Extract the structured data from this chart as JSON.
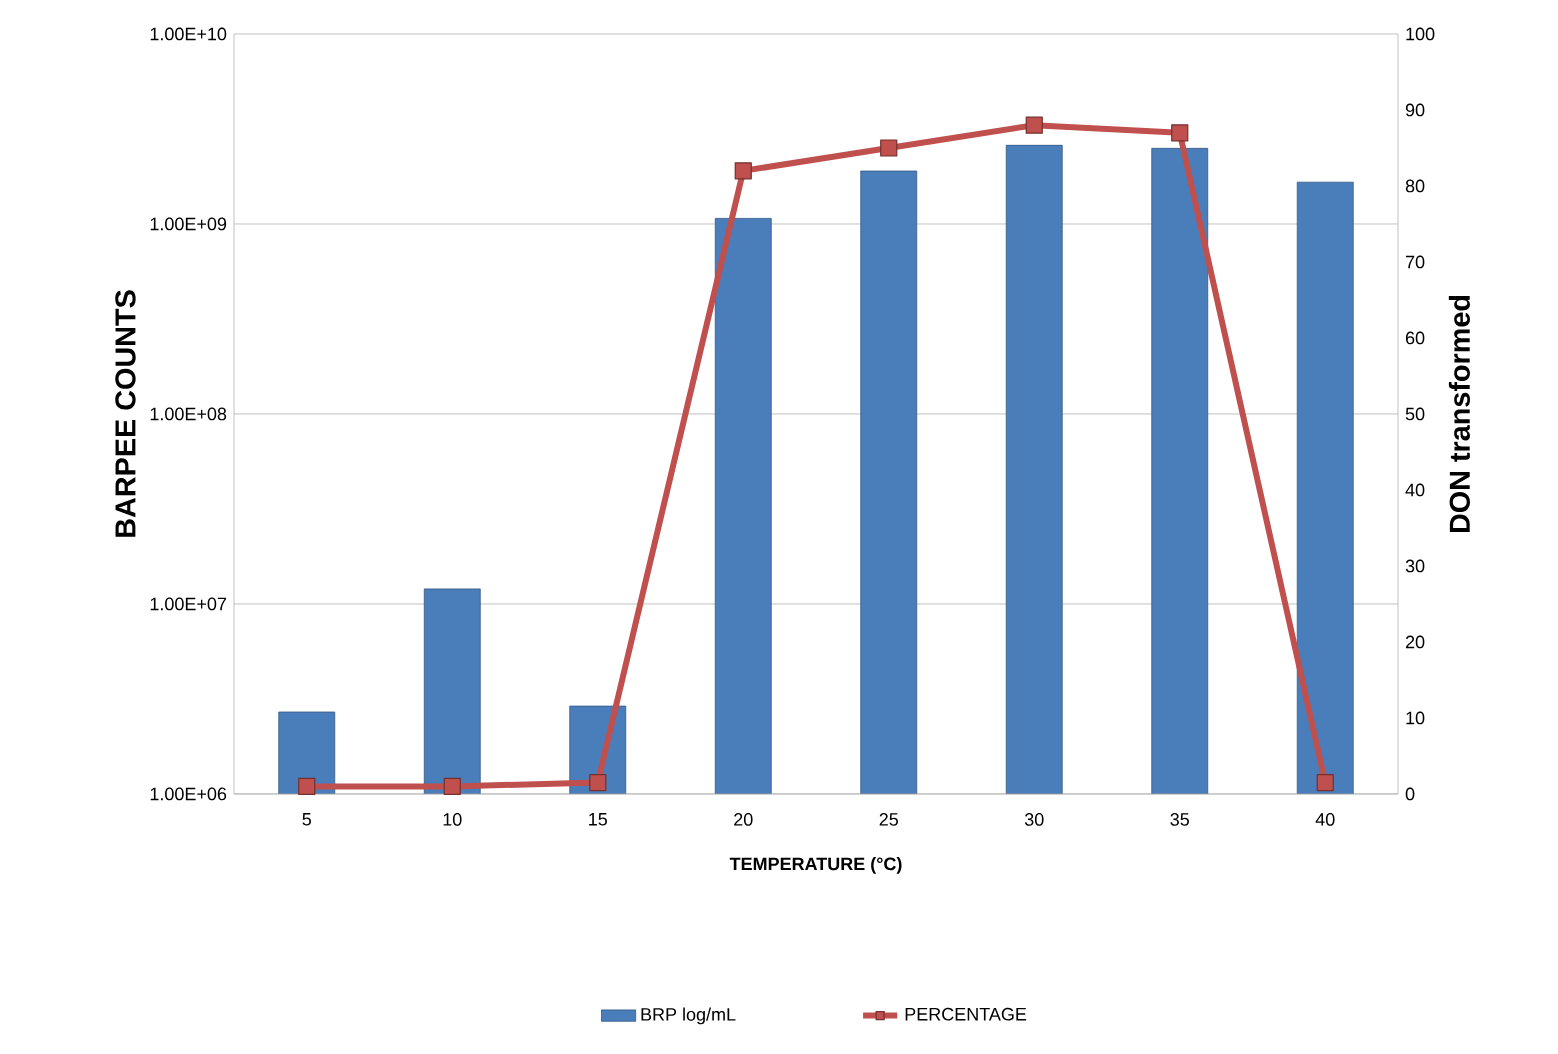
{
  "chart_data": {
    "type": "bar",
    "xlabel": "TEMPERATURE  (°C)",
    "ylabel": "BARPEE COUNTS",
    "y2label": "DON transformed",
    "categories": [
      "5",
      "10",
      "15",
      "20",
      "25",
      "30",
      "35",
      "40"
    ],
    "series": [
      {
        "name": "BRP log/mL",
        "color": "#4a7ebb",
        "values": [
          2700000,
          12000000,
          2900000,
          1070000000,
          1900000000,
          2600000000,
          2500000000,
          1660000000
        ]
      },
      {
        "name": "PERCENTAGE",
        "type": "line",
        "axis": "y2",
        "marker": "square",
        "color": "#c0504d",
        "values": [
          1,
          1,
          1.5,
          82,
          85,
          88,
          87,
          1.5
        ]
      }
    ],
    "ylim": [
      1000000,
      10000000000
    ],
    "yticks": [
      {
        "value": 1000000,
        "label": "1.00E+06"
      },
      {
        "value": 10000000,
        "label": "1.00E+07"
      },
      {
        "value": 100000000,
        "label": "1.00E+08"
      },
      {
        "value": 1000000000,
        "label": "1.00E+09"
      },
      {
        "value": 10000000000,
        "label": "1.00E+10"
      }
    ],
    "y2lim": [
      0,
      100
    ],
    "y2ticks": [
      0,
      10,
      20,
      30,
      40,
      50,
      60,
      70,
      80,
      90,
      100
    ],
    "log": "y",
    "grid": "y",
    "legend": "bottom"
  }
}
